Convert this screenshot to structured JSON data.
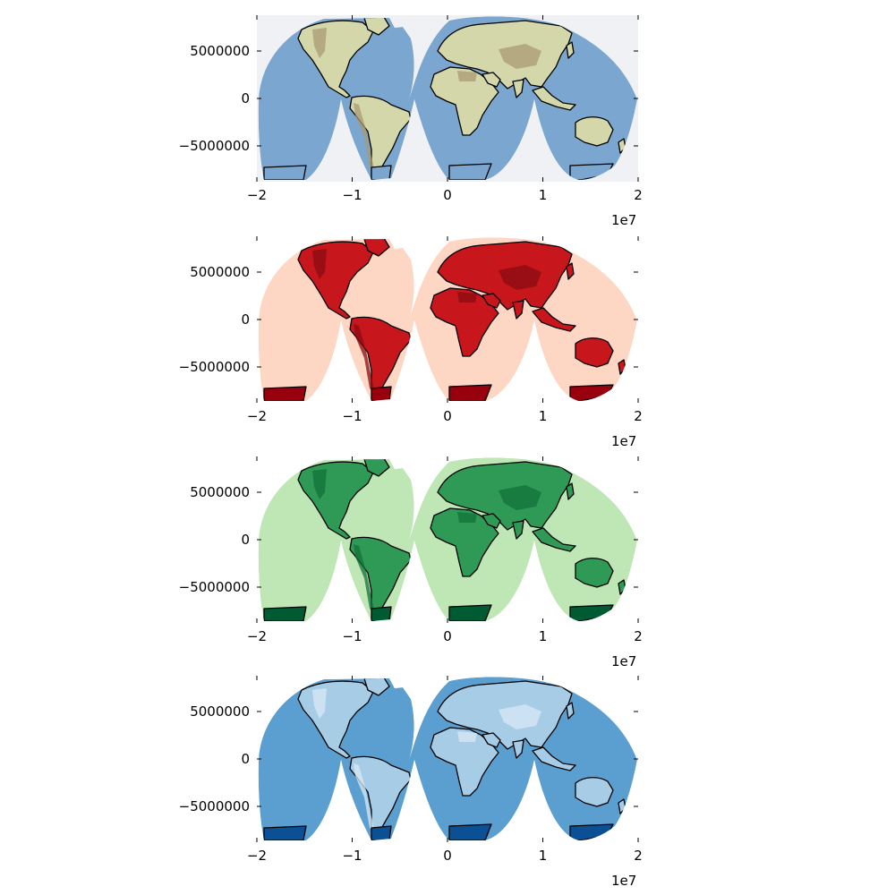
{
  "panels": [
    {
      "colormap": "natural-earth",
      "ocean_color": "#7aa6cf",
      "land_color": "#d3d7a9",
      "land_high_color": "#a99a74",
      "polar_color": "#7aa6cf",
      "background_color": "#eff1f5",
      "xticks": [
        "−2",
        "−1",
        "0",
        "1",
        "2"
      ],
      "yticks": [
        "5000000",
        "0",
        "−5000000"
      ],
      "x_offset": "1e7"
    },
    {
      "colormap": "Reds",
      "ocean_color": "#fdd6c4",
      "land_color": "#c8161d",
      "land_high_color": "#8a0c13",
      "polar_color": "#99000d",
      "background_color": "#ffffff",
      "xticks": [
        "−2",
        "−1",
        "0",
        "1",
        "2"
      ],
      "yticks": [
        "5000000",
        "0",
        "−5000000"
      ],
      "x_offset": "1e7"
    },
    {
      "colormap": "Greens",
      "ocean_color": "#bfe6b5",
      "land_color": "#2f9a55",
      "land_high_color": "#11703a",
      "polar_color": "#005a32",
      "background_color": "#ffffff",
      "xticks": [
        "−2",
        "−1",
        "0",
        "1",
        "2"
      ],
      "yticks": [
        "5000000",
        "0",
        "−5000000"
      ],
      "x_offset": "1e7"
    },
    {
      "colormap": "Blues",
      "ocean_color": "#5b9fd1",
      "land_color": "#a6cce6",
      "land_high_color": "#d8e8f5",
      "polar_color": "#0b4f94",
      "background_color": "#ffffff",
      "xticks": [
        "−2",
        "−1",
        "0",
        "1",
        "2"
      ],
      "yticks": [
        "5000000",
        "0",
        "−5000000"
      ],
      "x_offset": "1e7"
    }
  ],
  "projection": "interrupted-goode-homolosine",
  "x_range": [
    -20000000,
    20000000
  ],
  "y_range": [
    -8500000,
    8500000
  ]
}
